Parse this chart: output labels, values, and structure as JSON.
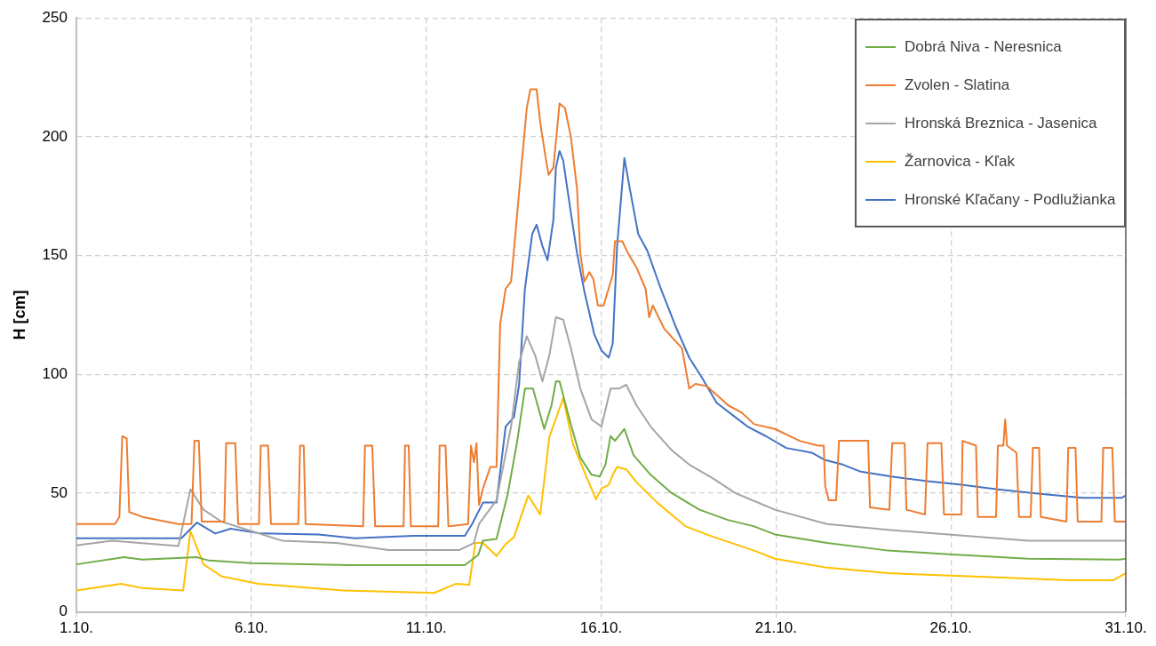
{
  "chart_data": {
    "type": "line",
    "ylabel": "H [cm]",
    "xlim": [
      "--10-01",
      "--10-31"
    ],
    "xticks": [
      {
        "value": "--10-01",
        "label": "1.10."
      },
      {
        "value": "--10-06",
        "label": "6.10."
      },
      {
        "value": "--10-11",
        "label": "11.10."
      },
      {
        "value": "--10-16",
        "label": "16.10."
      },
      {
        "value": "--10-21",
        "label": "21.10."
      },
      {
        "value": "--10-26",
        "label": "26.10."
      },
      {
        "value": "--10-31",
        "label": "31.10."
      }
    ],
    "ylim": [
      0,
      250
    ],
    "yticks": [
      0,
      50,
      100,
      150,
      200,
      250
    ],
    "grid": true,
    "legend": "top right",
    "marker": "none",
    "line_style": "solid",
    "series": [
      {
        "name": "Dobrá Niva - Neresnica",
        "color": "#70ad47",
        "x": [
          "--10-01T00:00",
          "--10-02T08:45",
          "--10-02T21:15",
          "--10-04T10:45",
          "--10-04T19:00",
          "--10-06T00:15",
          "--10-08T19:30",
          "--10-12T02:30",
          "--10-12T11:45",
          "--10-12T15:00",
          "--10-13T00:15",
          "--10-13T07:45",
          "--10-13T14:30",
          "--10-13T19:45",
          "--10-14T01:15",
          "--10-14T09:00",
          "--10-14T14:00",
          "--10-14T17:00",
          "--10-14T19:30",
          "--10-15T03:15",
          "--10-15T09:45",
          "--10-15T17:30",
          "--10-15T23:00",
          "--10-16T03:00",
          "--10-16T06:30",
          "--10-16T09:30",
          "--10-16T16:00",
          "--10-16T22:15",
          "--10-17T10:00",
          "--10-18T00:30",
          "--10-18T19:30",
          "--10-19T15:00",
          "--10-20T09:00",
          "--10-20T23:15",
          "--10-22T11:00",
          "--10-24T05:00",
          "--10-25T22:15",
          "--10-28T05:00",
          "--10-30T19:45",
          "--10-31T00:00"
        ],
        "values": [
          20,
          23,
          22,
          23,
          21.6,
          20.5,
          19.7,
          19.7,
          24,
          30,
          30.7,
          49,
          72,
          94,
          94,
          77,
          87,
          97,
          97,
          79,
          65,
          57.7,
          57,
          62,
          74,
          72,
          77,
          66,
          57.7,
          50,
          43,
          38.7,
          36,
          32.6,
          29,
          25.8,
          24.3,
          22.4,
          22,
          22.4
        ]
      },
      {
        "name": "Zvolen - Slatina",
        "color": "#ed7d31",
        "x": [
          "--10-01T00:00",
          "--10-02T02:30",
          "--10-02T05:30",
          "--10-02T07:30",
          "--10-02T10:30",
          "--10-02T12:15",
          "--10-02T21:15",
          "--10-03T22:00",
          "--10-04T07:00",
          "--10-04T09:00",
          "--10-04T12:00",
          "--10-04T14:00",
          "--10-05T05:30",
          "--10-05T06:45",
          "--10-05T13:00",
          "--10-05T15:00",
          "--10-06T05:15",
          "--10-06T06:30",
          "--10-06T11:30",
          "--10-06T13:30",
          "--10-07T08:15",
          "--10-07T09:30",
          "--10-07T12:00",
          "--10-07T13:15",
          "--10-09T04:45",
          "--10-09T06:00",
          "--10-09T11:00",
          "--10-09T13:00",
          "--10-10T08:30",
          "--10-10T09:30",
          "--10-10T12:00",
          "--10-10T13:30",
          "--10-11T08:15",
          "--10-11T09:15",
          "--10-11T13:15",
          "--10-11T15:15",
          "--10-12T04:45",
          "--10-12T06:45",
          "--10-12T08:45",
          "--10-12T10:30",
          "--10-12T12:15",
          "--10-12T15:00",
          "--10-12T20:00",
          "--10-13T00:15",
          "--10-13T02:45",
          "--10-13T06:30",
          "--10-13T10:15",
          "--10-13T13:30",
          "--10-13T17:15",
          "--10-13T21:00",
          "--10-13T23:30",
          "--10-14T03:45",
          "--10-14T06:15",
          "--10-14T10:00",
          "--10-14T12:00",
          "--10-14T15:15",
          "--10-14T17:00",
          "--10-14T19:30",
          "--10-14T23:15",
          "--10-15T03:15",
          "--10-15T07:30",
          "--10-15T09:45",
          "--10-15T12:30",
          "--10-15T16:00",
          "--10-15T18:45",
          "--10-15T21:45",
          "--10-16T01:45",
          "--10-16T08:00",
          "--10-16T09:30",
          "--10-16T14:30",
          "--10-16T18:30",
          "--10-17T00:15",
          "--10-17T06:30",
          "--10-17T09:00",
          "--10-17T11:30",
          "--10-17T19:30",
          "--10-18T07:30",
          "--10-18T12:30",
          "--10-18T16:45",
          "--10-19T00:30",
          "--10-19T09:45",
          "--10-19T15:00",
          "--10-20T00:15",
          "--10-20T09:00",
          "--10-20T23:15",
          "--10-21T16:15",
          "--10-22T04:45",
          "--10-22T08:45",
          "--10-22T09:45",
          "--10-22T12:15",
          "--10-22T17:15",
          "--10-22T19:15",
          "--10-23T15:15",
          "--10-23T16:30",
          "--10-24T05:45",
          "--10-24T07:45",
          "--10-24T16:15",
          "--10-24T17:30",
          "--10-25T06:15",
          "--10-25T08:00",
          "--10-25T17:30",
          "--10-25T19:15",
          "--10-26T07:15",
          "--10-26T08:00",
          "--10-26T17:15",
          "--10-26T18:30",
          "--10-27T07:00",
          "--10-27T08:15",
          "--10-27T12:00",
          "--10-27T13:15",
          "--10-27T14:30",
          "--10-27T21:00",
          "--10-27T22:45",
          "--10-28T06:45",
          "--10-28T08:15",
          "--10-28T12:30",
          "--10-28T13:45",
          "--10-29T07:15",
          "--10-29T08:30",
          "--10-29T13:30",
          "--10-29T15:00",
          "--10-30T07:15",
          "--10-30T08:30",
          "--10-30T14:45",
          "--10-30T16:30",
          "--10-31T00:00"
        ],
        "values": [
          37,
          37,
          40,
          74,
          73,
          42,
          40,
          37,
          37,
          72,
          72,
          38,
          38,
          71,
          71,
          37,
          37,
          70,
          70,
          37,
          37,
          70,
          70,
          37,
          36,
          70,
          70,
          36,
          36,
          70,
          70,
          36,
          36,
          70,
          70,
          36,
          37,
          70,
          63,
          71,
          45,
          52,
          61,
          61,
          121,
          136,
          139,
          161,
          187,
          212,
          220,
          220,
          206,
          191,
          184,
          187,
          198,
          214,
          212,
          200,
          178,
          151,
          139,
          143,
          140,
          129,
          129,
          142,
          156,
          156,
          151,
          145,
          136,
          124,
          129,
          119,
          111,
          94,
          96,
          95,
          90,
          87,
          84,
          79,
          77,
          72,
          70,
          70,
          53,
          47,
          47,
          72,
          72,
          44,
          43,
          71,
          71,
          43,
          41,
          71,
          71,
          41,
          41,
          72,
          70,
          40,
          40,
          70,
          70,
          81,
          70,
          67,
          40,
          40,
          69,
          69,
          40,
          38,
          69,
          69,
          38,
          38,
          69,
          69,
          38,
          38
        ]
      },
      {
        "name": "Hronská Breznica - Jasenica",
        "color": "#a5a5a5",
        "x": [
          "--10-01T00:00",
          "--10-02T00:30",
          "--10-03T22:00",
          "--10-04T06:15",
          "--10-04T15:15",
          "--10-05T03:30",
          "--10-06T00:15",
          "--10-06T21:00",
          "--10-08T10:30",
          "--10-09T22:15",
          "--10-11T22:30",
          "--10-12T08:45",
          "--10-12T12:15",
          "--10-13T00:15",
          "--10-13T10:15",
          "--10-13T15:45",
          "--10-13T21:00",
          "--10-14T02:45",
          "--10-14T07:45",
          "--10-14T12:30",
          "--10-14T17:00",
          "--10-14T22:00",
          "--10-15T03:15",
          "--10-15T09:45",
          "--10-15T17:30",
          "--10-16T00:15",
          "--10-16T06:30",
          "--10-16T12:15",
          "--10-16T17:15",
          "--10-17T00:15",
          "--10-17T10:00",
          "--10-18T00:30",
          "--10-18T12:30",
          "--10-19T05:15",
          "--10-19T20:00",
          "--10-20T09:00",
          "--10-20T23:15",
          "--10-22T11:00",
          "--10-24T05:00",
          "--10-25T22:15",
          "--10-28T05:00",
          "--10-31T00:00"
        ],
        "values": [
          28,
          30,
          27.7,
          51.6,
          43,
          38,
          34,
          30,
          29,
          26,
          26,
          29,
          37,
          47,
          78,
          105,
          116,
          108,
          97,
          108,
          124,
          123,
          111,
          94,
          81,
          78,
          94,
          94,
          95.6,
          87,
          78,
          68,
          62,
          56,
          50,
          46.7,
          43,
          37,
          34.5,
          32.6,
          30,
          30
        ]
      },
      {
        "name": "Žarnovica - Kľak",
        "color": "#ffc000",
        "x": [
          "--10-01T00:00",
          "--10-02T06:45",
          "--10-02T21:15",
          "--10-04T01:15",
          "--10-04T06:15",
          "--10-04T15:15",
          "--10-05T03:30",
          "--10-06T04:45",
          "--10-08T15:00",
          "--10-11T05:30",
          "--10-11T20:15",
          "--10-12T05:30",
          "--10-12T09:45",
          "--10-12T15:00",
          "--10-13T00:15",
          "--10-13T06:30",
          "--10-13T12:15",
          "--10-13T22:00",
          "--10-14T06:15",
          "--10-14T12:30",
          "--10-14T22:00",
          "--10-15T04:45",
          "--10-15T12:30",
          "--10-15T20:30",
          "--10-16T00:15",
          "--10-16T05:15",
          "--10-16T08:00",
          "--10-16T11:00",
          "--10-16T17:15",
          "--10-17T00:15",
          "--10-17T14:30",
          "--10-18T10:00",
          "--10-19T05:15",
          "--10-20T09:00",
          "--10-20T23:15",
          "--10-22T11:00",
          "--10-24T05:00",
          "--10-26T19:45",
          "--10-29T10:15",
          "--10-30T15:15",
          "--10-31T00:00"
        ],
        "values": [
          9,
          11.8,
          10,
          9,
          34,
          20,
          15,
          11.8,
          9,
          8,
          11.8,
          11.4,
          29,
          29,
          23.5,
          28.5,
          31.5,
          49,
          41,
          73.6,
          90,
          70.6,
          59,
          47.4,
          52,
          53.5,
          57.7,
          61,
          60,
          54.6,
          46,
          36,
          31.5,
          25.8,
          22.4,
          18.6,
          16.3,
          14.8,
          13.3,
          13.3,
          16.3
        ]
      },
      {
        "name": "Hronské Kľačany - Podlužianka",
        "color": "#4472c4",
        "x": [
          "--10-01T00:00",
          "--10-04T00:00",
          "--10-04T10:45",
          "--10-04T23:15",
          "--10-05T09:45",
          "--10-06T06:30",
          "--10-07T22:00",
          "--10-08T23:00",
          "--10-10T15:15",
          "--10-12T02:30",
          "--10-12T07:30",
          "--10-12T15:00",
          "--10-13T00:15",
          "--10-13T06:30",
          "--10-13T12:15",
          "--10-13T15:45",
          "--10-13T19:45",
          "--10-14T00:45",
          "--10-14T03:45",
          "--10-14T07:45",
          "--10-14T11:15",
          "--10-14T15:15",
          "--10-14T17:00",
          "--10-14T19:30",
          "--10-14T22:00",
          "--10-15T03:15",
          "--10-15T07:30",
          "--10-15T12:30",
          "--10-15T19:15",
          "--10-16T00:15",
          "--10-16T05:15",
          "--10-16T08:00",
          "--10-16T11:00",
          "--10-16T16:00",
          "--10-16T19:45",
          "--10-17T01:30",
          "--10-17T07:45",
          "--10-17T17:00",
          "--10-18T03:15",
          "--10-18T12:30",
          "--10-18T21:45",
          "--10-19T07:15",
          "--10-19T20:00",
          "--10-20T04:30",
          "--10-20T17:00",
          "--10-21T07:00",
          "--10-22T00:30",
          "--10-22T09:15",
          "--10-22T21:45",
          "--10-23T10:15",
          "--10-24T07:00",
          "--10-25T08:00",
          "--10-26T07:15",
          "--10-27T08:15",
          "--10-28T13:15",
          "--10-29T18:30",
          "--10-30T21:00",
          "--10-31T00:00"
        ],
        "values": [
          31,
          31,
          37.6,
          33,
          35,
          33,
          32.6,
          31,
          32,
          32,
          37,
          46,
          46,
          78,
          82,
          95.6,
          136,
          159,
          163,
          154,
          148,
          165,
          187,
          194,
          190,
          168,
          151,
          135,
          117,
          110,
          107,
          113,
          154,
          191,
          178,
          159,
          152,
          136,
          120,
          107,
          98,
          88,
          82,
          78,
          74,
          69,
          67,
          64,
          62,
          59,
          57,
          55,
          53.5,
          51.6,
          49.7,
          48,
          48,
          49
        ]
      }
    ]
  }
}
